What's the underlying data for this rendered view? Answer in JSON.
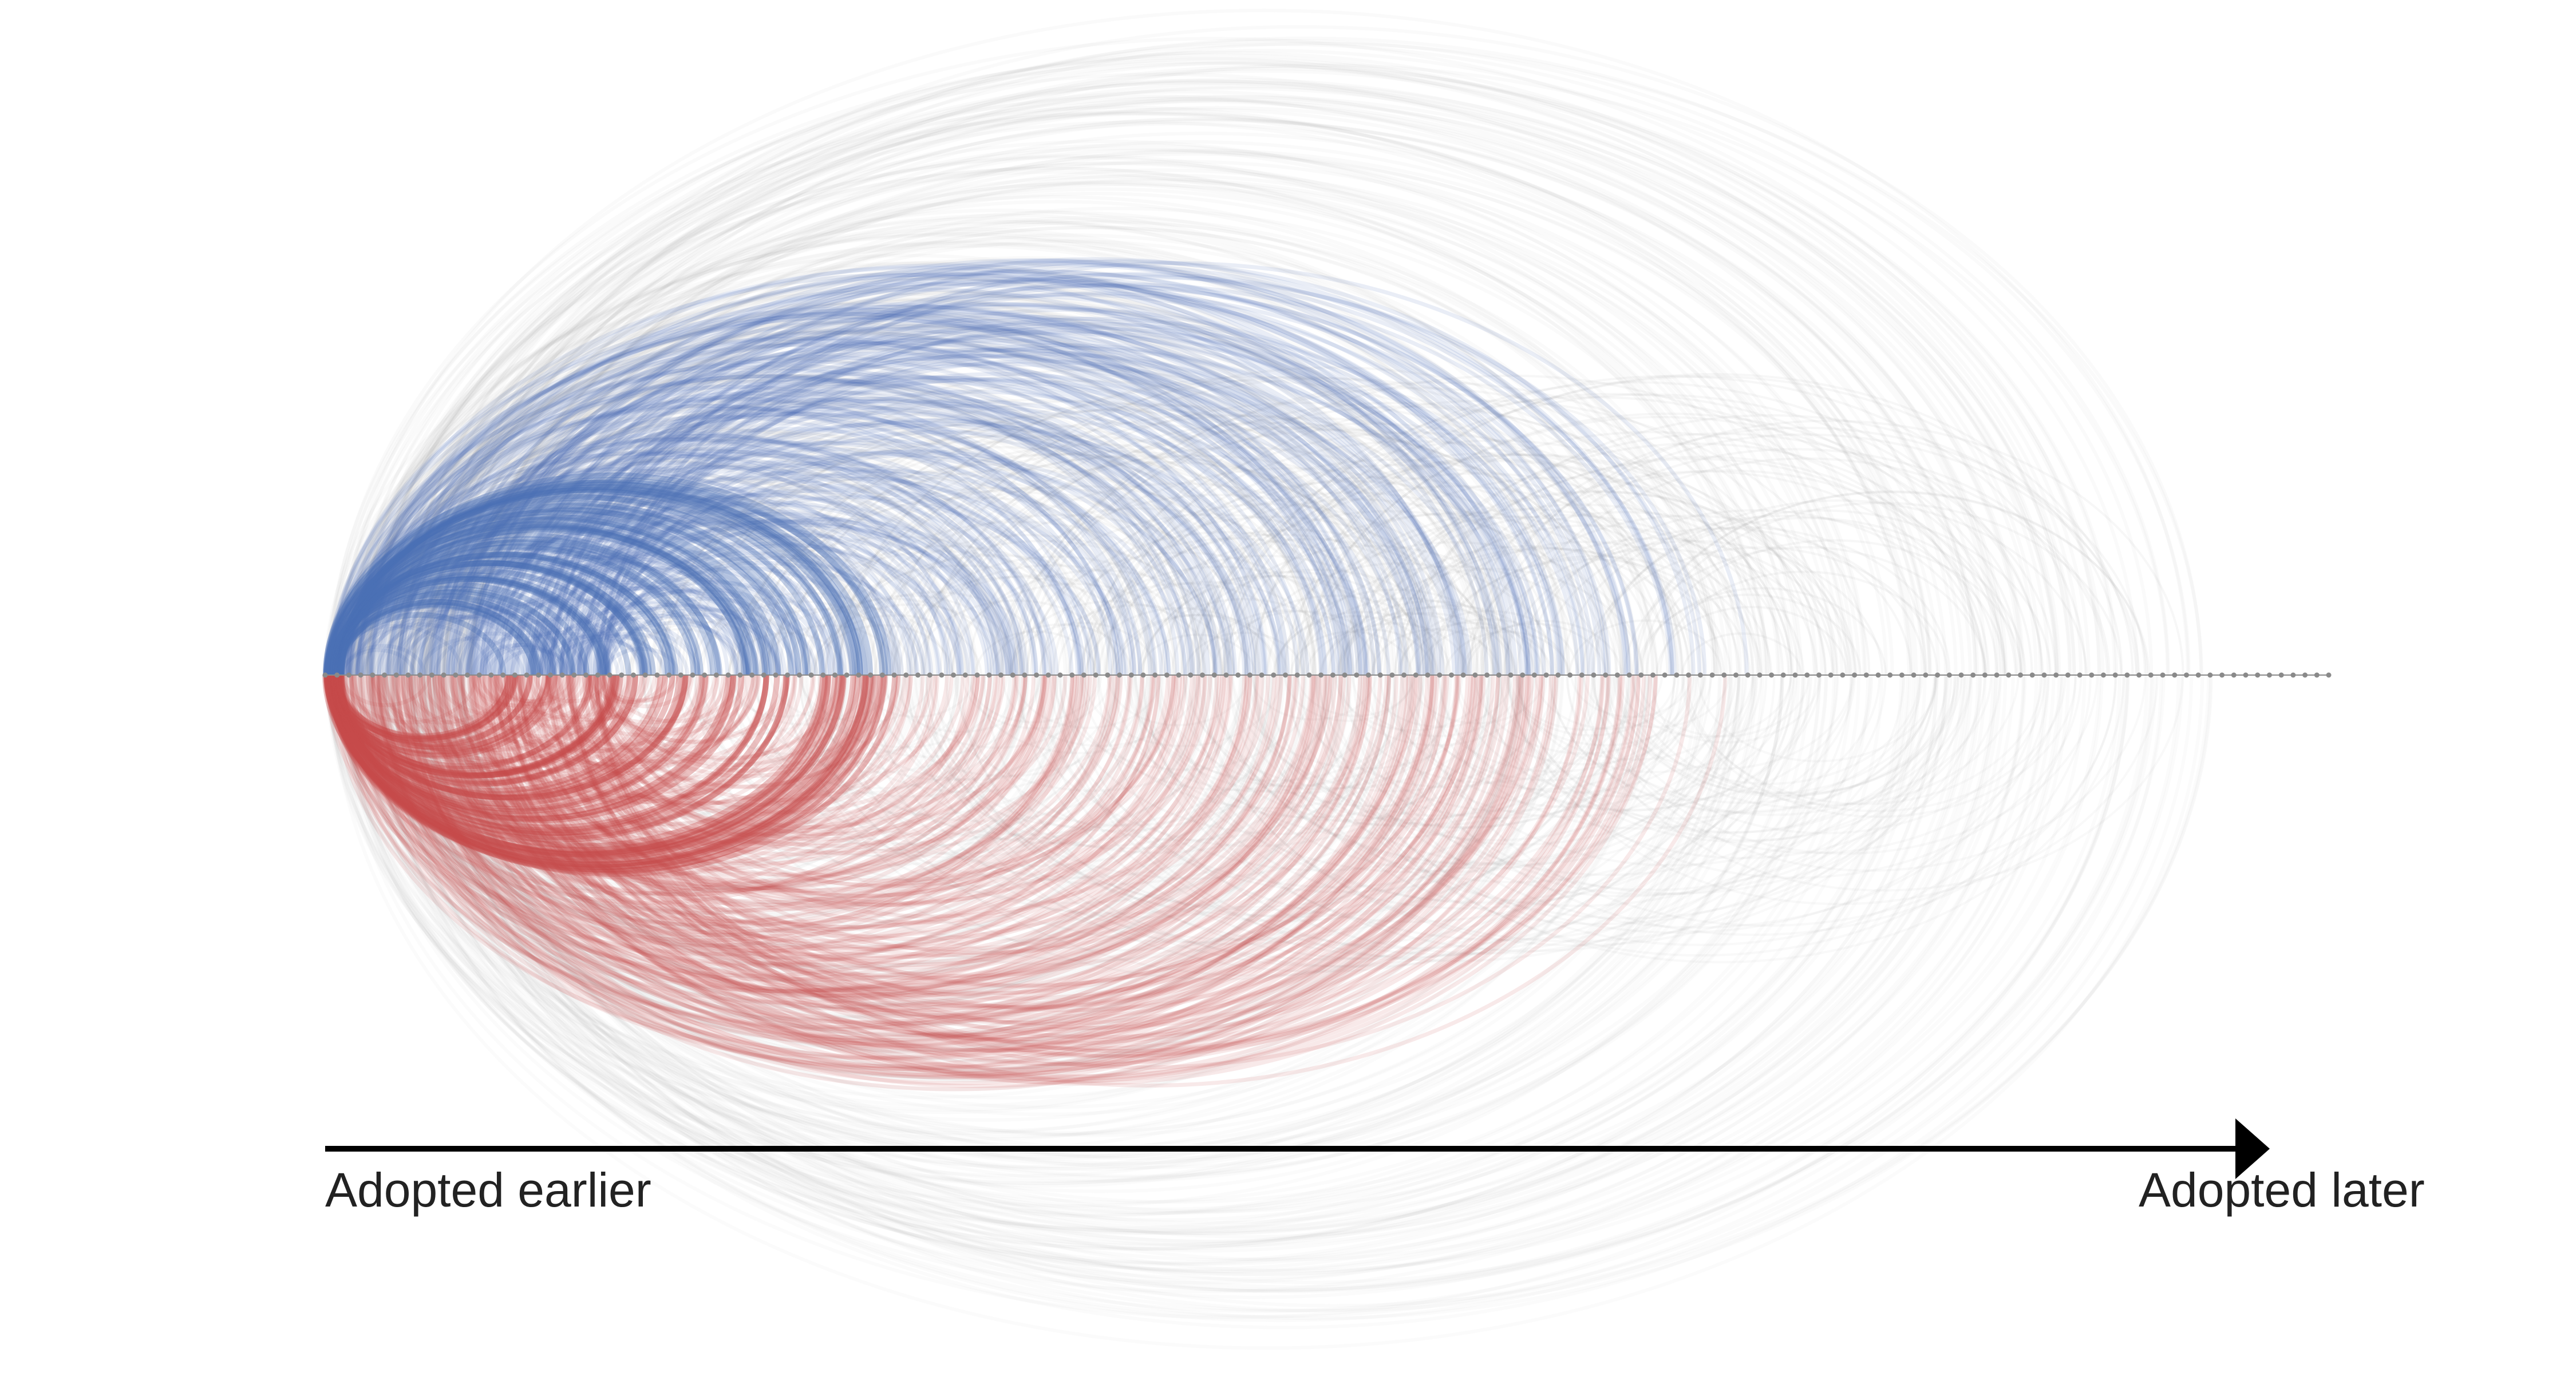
{
  "diagram": {
    "type": "arc-diagram",
    "node_count": 170,
    "colors": {
      "blue_arcs": "#4a6fb5",
      "red_arcs": "#c64b4b",
      "gray_arcs": "#9a9a9a",
      "nodes": "#8a8a8a",
      "axis": "#000000"
    }
  },
  "axis": {
    "start_label": "Adopted earlier",
    "end_label": "Adopted later"
  }
}
